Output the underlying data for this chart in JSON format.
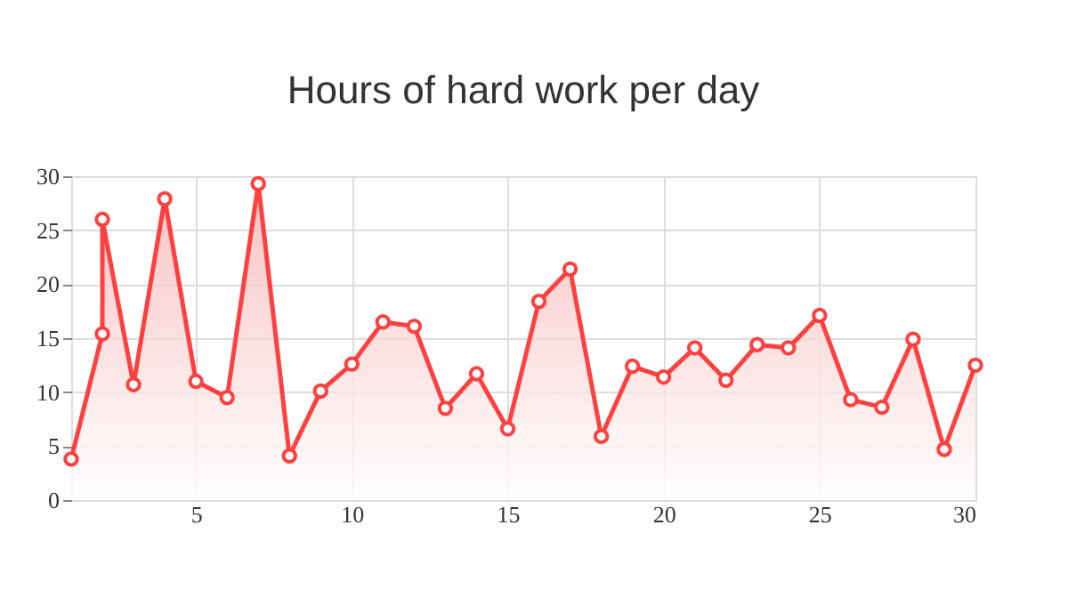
{
  "chart_data": {
    "type": "area",
    "title": "Hours of hard work per day",
    "x": [
      1,
      2,
      2,
      3,
      4,
      5,
      6,
      7,
      8,
      9,
      10,
      11,
      12,
      13,
      14,
      15,
      16,
      17,
      18,
      19,
      20,
      21,
      22,
      23,
      24,
      25,
      26,
      27,
      28,
      29,
      30
    ],
    "series": [
      {
        "color": "#ff4040",
        "values": [
          3.8,
          15.4,
          26.0,
          10.7,
          27.9,
          11.0,
          9.5,
          29.3,
          4.1,
          10.1,
          12.6,
          16.5,
          16.1,
          8.5,
          11.7,
          6.6,
          18.4,
          21.4,
          5.9,
          12.4,
          11.4,
          14.1,
          11.1,
          14.4,
          14.1,
          17.1,
          9.3,
          8.6,
          14.9,
          4.7,
          12.5
        ]
      }
    ],
    "xlim": [
      1,
      30
    ],
    "xticks": [
      5,
      10,
      15,
      20,
      25,
      30
    ],
    "ylim": [
      0,
      30
    ],
    "yticks": [
      0,
      5,
      10,
      15,
      20,
      25,
      30
    ],
    "grid": true,
    "marker": "circle",
    "line_style": "solid"
  }
}
